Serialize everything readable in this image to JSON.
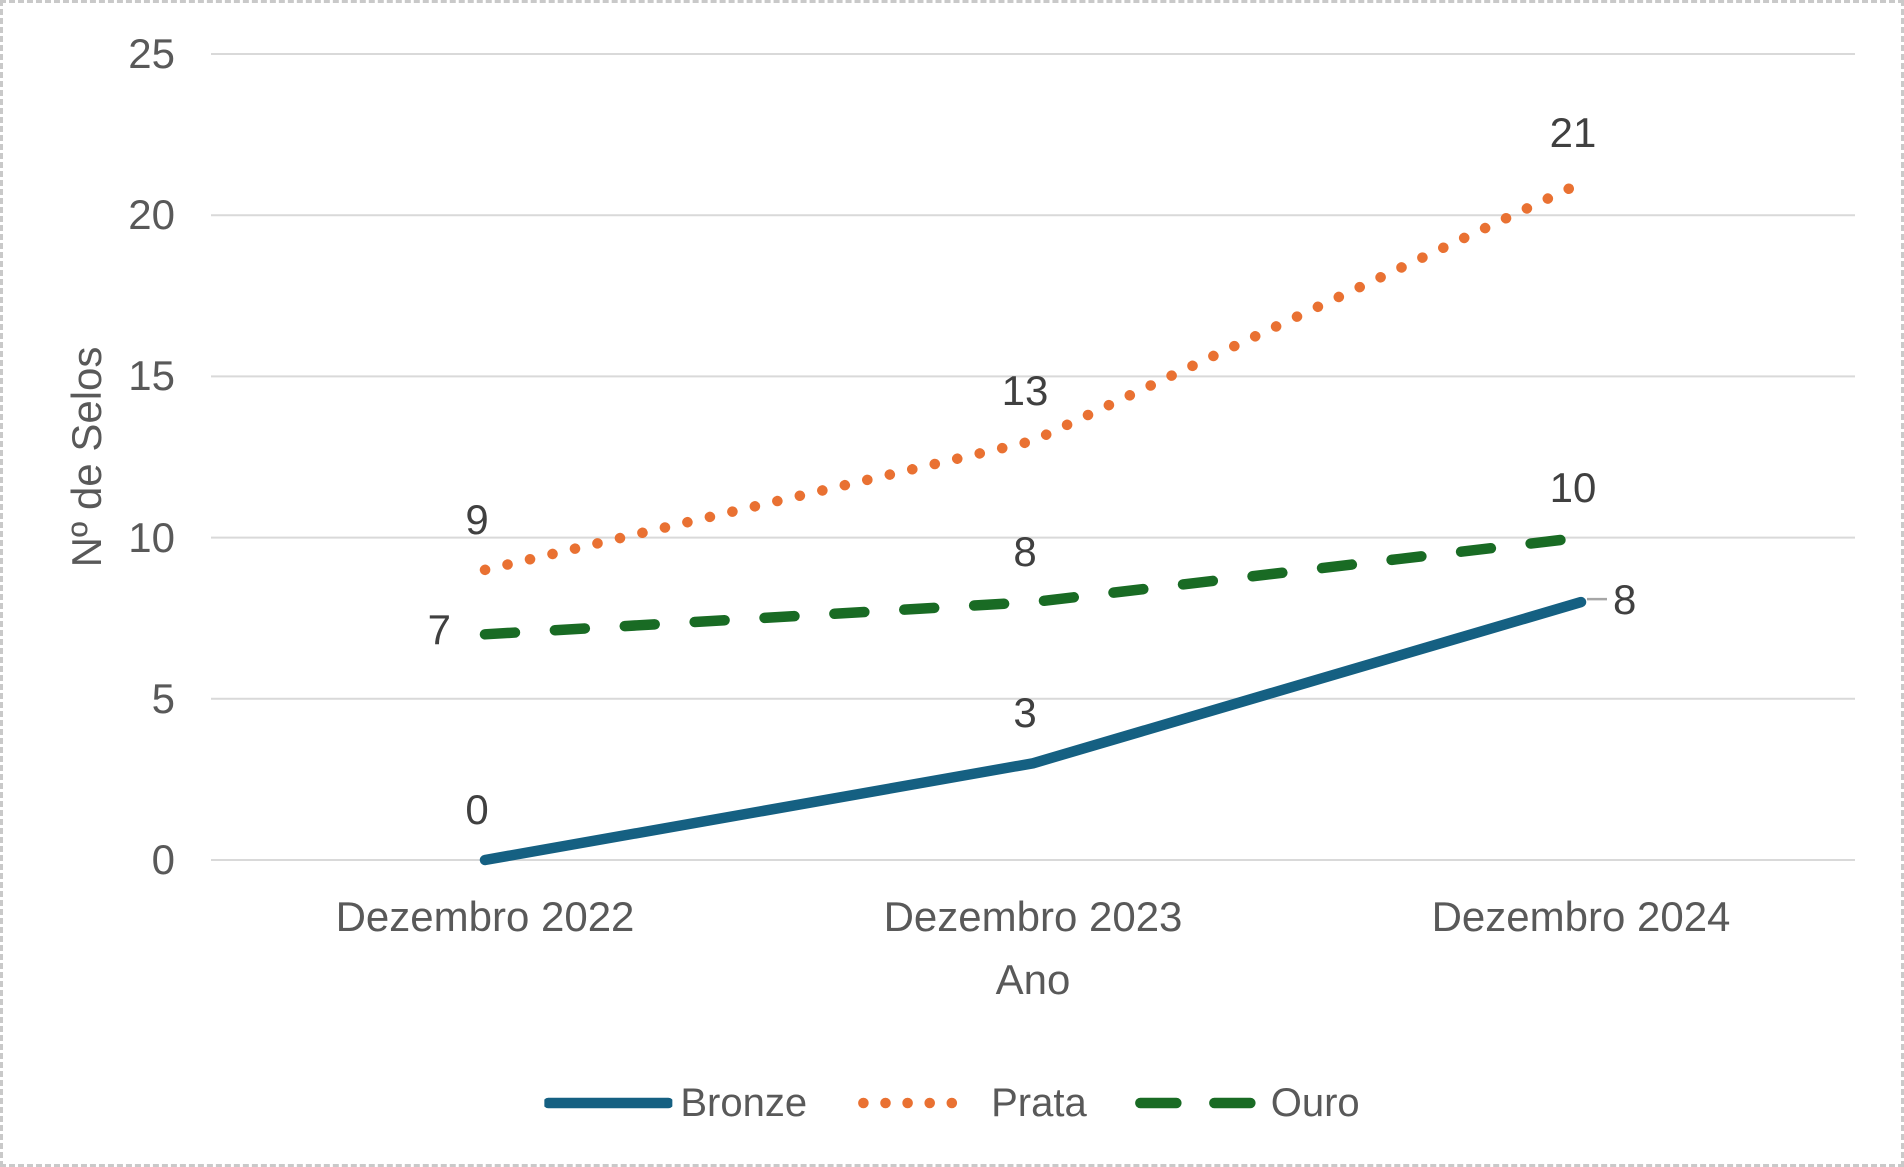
{
  "colors": {
    "gridline": "#D9D9D9",
    "axis_text": "#595959",
    "data_label_text": "#404040",
    "leader_line": "#A6A6A6",
    "outer_border": "#C9C9C9",
    "background": "#FFFFFF"
  },
  "chart_data": {
    "type": "line",
    "title": "",
    "categories": [
      "Dezembro 2022",
      "Dezembro 2023",
      "Dezembro 2024"
    ],
    "series": [
      {
        "name": "Bronze",
        "values": [
          0,
          3,
          8
        ],
        "data_labels": [
          "0",
          "3",
          "8"
        ],
        "label_positions": [
          "above",
          "above",
          "right-leader"
        ],
        "color": "#156082",
        "line_style": "solid"
      },
      {
        "name": "Prata",
        "values": [
          9,
          13,
          21
        ],
        "data_labels": [
          "9",
          "13",
          "21"
        ],
        "label_positions": [
          "above",
          "above",
          "above"
        ],
        "color": "#E97132",
        "line_style": "dotted"
      },
      {
        "name": "Ouro",
        "values": [
          7,
          8,
          10
        ],
        "data_labels": [
          "7",
          "8",
          "10"
        ],
        "label_positions": [
          "left",
          "above",
          "above"
        ],
        "color": "#196B24",
        "line_style": "dashed"
      }
    ],
    "xlabel": "Ano",
    "ylabel": "Nº de Selos",
    "ylim": [
      0,
      25
    ],
    "ytick_step": 5,
    "yticks": [
      "0",
      "5",
      "10",
      "15",
      "20",
      "25"
    ],
    "grid": true,
    "legend_position": "bottom"
  }
}
